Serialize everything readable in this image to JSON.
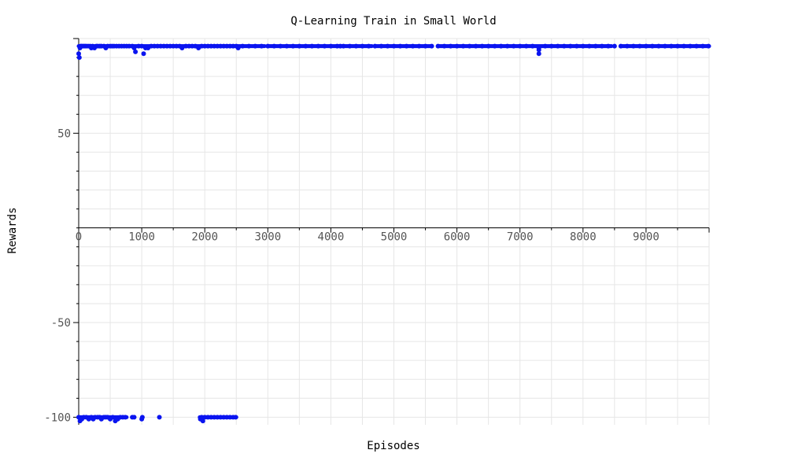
{
  "chart_data": {
    "type": "scatter",
    "title": "Q-Learning Train in Small World",
    "xlabel": "Episodes",
    "ylabel": "Rewards",
    "xlim": [
      0,
      10000
    ],
    "ylim": [
      -104,
      100
    ],
    "x_ticks": [
      0,
      1000,
      2000,
      3000,
      4000,
      5000,
      6000,
      7000,
      8000,
      9000
    ],
    "y_ticks": [
      50,
      -50,
      -100
    ],
    "grid": true,
    "legend": "none",
    "color": "#0a14f0",
    "series": [
      {
        "points": [
          [
            0,
            92
          ],
          [
            10,
            90
          ],
          [
            20,
            95
          ],
          [
            30,
            96
          ],
          [
            40,
            96
          ],
          [
            60,
            96
          ],
          [
            80,
            96
          ],
          [
            100,
            96
          ],
          [
            120,
            96
          ],
          [
            150,
            96
          ],
          [
            180,
            96
          ],
          [
            200,
            95
          ],
          [
            220,
            96
          ],
          [
            250,
            95
          ],
          [
            280,
            96
          ],
          [
            300,
            96
          ],
          [
            330,
            96
          ],
          [
            360,
            96
          ],
          [
            400,
            96
          ],
          [
            430,
            95
          ],
          [
            460,
            96
          ],
          [
            500,
            96
          ],
          [
            530,
            96
          ],
          [
            560,
            96
          ],
          [
            600,
            96
          ],
          [
            640,
            96
          ],
          [
            680,
            96
          ],
          [
            720,
            96
          ],
          [
            760,
            96
          ],
          [
            800,
            96
          ],
          [
            850,
            96
          ],
          [
            880,
            95
          ],
          [
            900,
            93
          ],
          [
            950,
            96
          ],
          [
            1000,
            96
          ],
          [
            1030,
            92
          ],
          [
            1060,
            95
          ],
          [
            1100,
            95
          ],
          [
            1150,
            96
          ],
          [
            1200,
            96
          ],
          [
            1250,
            96
          ],
          [
            1300,
            96
          ],
          [
            1350,
            96
          ],
          [
            1400,
            96
          ],
          [
            1450,
            96
          ],
          [
            1500,
            96
          ],
          [
            1550,
            96
          ],
          [
            1600,
            96
          ],
          [
            1640,
            95
          ],
          [
            1700,
            96
          ],
          [
            1750,
            96
          ],
          [
            1800,
            96
          ],
          [
            1850,
            96
          ],
          [
            1900,
            95
          ],
          [
            1950,
            96
          ],
          [
            2000,
            96
          ],
          [
            2050,
            96
          ],
          [
            2100,
            96
          ],
          [
            2150,
            96
          ],
          [
            2200,
            96
          ],
          [
            2250,
            96
          ],
          [
            2300,
            96
          ],
          [
            2350,
            96
          ],
          [
            2400,
            96
          ],
          [
            2450,
            96
          ],
          [
            2500,
            96
          ],
          [
            2530,
            95
          ],
          [
            2600,
            96
          ],
          [
            2700,
            96
          ],
          [
            2800,
            96
          ],
          [
            2900,
            96
          ],
          [
            3000,
            96
          ],
          [
            3100,
            96
          ],
          [
            3200,
            96
          ],
          [
            3300,
            96
          ],
          [
            3400,
            96
          ],
          [
            3500,
            96
          ],
          [
            3600,
            96
          ],
          [
            3700,
            96
          ],
          [
            3800,
            96
          ],
          [
            3900,
            96
          ],
          [
            4000,
            96
          ],
          [
            4100,
            96
          ],
          [
            4150,
            96
          ],
          [
            4200,
            96
          ],
          [
            4300,
            96
          ],
          [
            4400,
            96
          ],
          [
            4500,
            96
          ],
          [
            4600,
            96
          ],
          [
            4700,
            96
          ],
          [
            4800,
            96
          ],
          [
            4900,
            96
          ],
          [
            5000,
            96
          ],
          [
            5100,
            96
          ],
          [
            5200,
            96
          ],
          [
            5300,
            96
          ],
          [
            5400,
            96
          ],
          [
            5500,
            96
          ],
          [
            5600,
            96
          ],
          [
            5700,
            96
          ],
          [
            5800,
            96
          ],
          [
            5900,
            96
          ],
          [
            6000,
            96
          ],
          [
            6100,
            96
          ],
          [
            6200,
            96
          ],
          [
            6300,
            96
          ],
          [
            6400,
            96
          ],
          [
            6500,
            96
          ],
          [
            6600,
            96
          ],
          [
            6700,
            96
          ],
          [
            6800,
            96
          ],
          [
            6900,
            96
          ],
          [
            7000,
            96
          ],
          [
            7100,
            96
          ],
          [
            7200,
            96
          ],
          [
            7300,
            95
          ],
          [
            7300,
            94
          ],
          [
            7300,
            92
          ],
          [
            7400,
            96
          ],
          [
            7500,
            96
          ],
          [
            7600,
            96
          ],
          [
            7700,
            96
          ],
          [
            7800,
            96
          ],
          [
            7900,
            96
          ],
          [
            8000,
            96
          ],
          [
            8100,
            96
          ],
          [
            8200,
            96
          ],
          [
            8300,
            96
          ],
          [
            8400,
            96
          ],
          [
            8500,
            96
          ],
          [
            8600,
            96
          ],
          [
            8700,
            96
          ],
          [
            8800,
            96
          ],
          [
            8900,
            96
          ],
          [
            9000,
            96
          ],
          [
            9100,
            96
          ],
          [
            9200,
            96
          ],
          [
            9300,
            96
          ],
          [
            9400,
            96
          ],
          [
            9500,
            96
          ],
          [
            9600,
            96
          ],
          [
            9700,
            96
          ],
          [
            9800,
            96
          ],
          [
            9900,
            96
          ],
          [
            9990,
            96
          ],
          [
            0,
            -100
          ],
          [
            20,
            -102
          ],
          [
            50,
            -101
          ],
          [
            80,
            -100
          ],
          [
            120,
            -100
          ],
          [
            160,
            -101
          ],
          [
            200,
            -100
          ],
          [
            230,
            -101
          ],
          [
            260,
            -100
          ],
          [
            300,
            -100
          ],
          [
            330,
            -100
          ],
          [
            360,
            -101
          ],
          [
            400,
            -100
          ],
          [
            430,
            -100
          ],
          [
            460,
            -100
          ],
          [
            500,
            -101
          ],
          [
            540,
            -100
          ],
          [
            580,
            -102
          ],
          [
            620,
            -101
          ],
          [
            660,
            -100
          ],
          [
            700,
            -100
          ],
          [
            740,
            -100
          ],
          [
            850,
            -100
          ],
          [
            880,
            -100
          ],
          [
            1000,
            -101
          ],
          [
            1010,
            -100
          ],
          [
            1280,
            -100
          ],
          [
            1930,
            -101
          ],
          [
            1950,
            -100
          ],
          [
            1970,
            -102
          ],
          [
            2000,
            -100
          ],
          [
            2050,
            -100
          ],
          [
            2100,
            -100
          ],
          [
            2150,
            -100
          ],
          [
            2200,
            -100
          ],
          [
            2250,
            -100
          ],
          [
            2300,
            -100
          ],
          [
            2350,
            -100
          ],
          [
            2400,
            -100
          ],
          [
            2450,
            -100
          ],
          [
            2490,
            -100
          ]
        ],
        "segments": [
          [
            0,
            2950,
            96
          ],
          [
            3000,
            4650,
            96
          ],
          [
            4700,
            5600,
            96
          ],
          [
            5700,
            8450,
            96
          ],
          [
            8600,
            10000,
            96
          ]
        ],
        "low_segments": [
          [
            0,
            760,
            -100
          ],
          [
            1920,
            2500,
            -100
          ]
        ]
      }
    ]
  }
}
